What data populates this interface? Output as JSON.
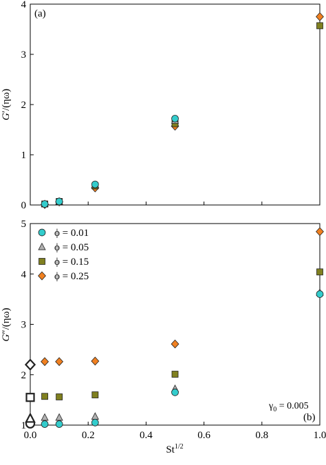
{
  "chart_data": [
    {
      "type": "scatter",
      "panel_label": "(a)",
      "ylabel": "G′/(ηω)",
      "ylabel_parts": {
        "main": "G",
        "prime": "′",
        "rest": "/(ηω)"
      },
      "xlim": [
        0,
        1
      ],
      "ylim": [
        0,
        4
      ],
      "xticks": [
        0,
        0.2,
        0.4,
        0.6,
        0.8,
        1
      ],
      "yticks": [
        "0",
        "1",
        "2",
        "3",
        "4"
      ],
      "series": [
        {
          "name": "ϕ = 0.01",
          "marker": "circle",
          "color": "#33cccc",
          "x": [
            0.05,
            0.1,
            0.224,
            0.5
          ],
          "y": [
            0.02,
            0.07,
            0.41,
            1.72
          ]
        },
        {
          "name": "ϕ = 0.05",
          "marker": "triangle",
          "color": "#b0b0b0",
          "x": [
            0.05,
            0.1,
            0.224,
            0.5
          ],
          "y": [
            0.02,
            0.07,
            0.4,
            1.68
          ]
        },
        {
          "name": "ϕ = 0.15",
          "marker": "square",
          "color": "#808020",
          "x": [
            0.05,
            0.1,
            0.224,
            0.5,
            1.0
          ],
          "y": [
            0.02,
            0.07,
            0.38,
            1.62,
            3.57
          ]
        },
        {
          "name": "ϕ = 0.25",
          "marker": "diamond",
          "color": "#f08020",
          "x": [
            0.05,
            0.1,
            0.224,
            0.5,
            1.0
          ],
          "y": [
            0.01,
            0.06,
            0.34,
            1.57,
            3.75
          ]
        }
      ]
    },
    {
      "type": "scatter",
      "panel_label": "(b)",
      "ylabel": "G″/(ηω)",
      "ylabel_parts": {
        "main": "G",
        "prime": "″",
        "rest": "/(ηω)"
      },
      "xlabel": "St1/2",
      "xlabel_parts": {
        "main": "St",
        "sup": "1/2"
      },
      "annotation": "γ0 = 0.005",
      "annotation_parts": {
        "main": "γ",
        "sub": "0",
        "rest": " = 0.005"
      },
      "xlim": [
        0,
        1
      ],
      "ylim": [
        1,
        5
      ],
      "xticks": [
        "0.0",
        "0.2",
        "0.4",
        "0.6",
        "0.8",
        "1.0"
      ],
      "yticks": [
        "1",
        "2",
        "3",
        "4",
        "5"
      ],
      "legend_position": "top-left",
      "series": [
        {
          "name": "ϕ = 0.01",
          "marker": "circle",
          "color": "#33cccc",
          "x": [
            0.05,
            0.1,
            0.224,
            0.5,
            1.0
          ],
          "y": [
            1.02,
            1.02,
            1.05,
            1.65,
            3.6
          ]
        },
        {
          "name": "ϕ = 0.05",
          "marker": "triangle",
          "color": "#b0b0b0",
          "x": [
            0.05,
            0.1,
            0.224,
            0.5,
            1.0
          ],
          "y": [
            1.15,
            1.15,
            1.17,
            1.72,
            3.63
          ]
        },
        {
          "name": "ϕ = 0.15",
          "marker": "square",
          "color": "#808020",
          "x": [
            0.05,
            0.1,
            0.224,
            0.5,
            1.0
          ],
          "y": [
            1.57,
            1.56,
            1.6,
            2.01,
            4.04
          ]
        },
        {
          "name": "ϕ = 0.25",
          "marker": "diamond",
          "color": "#f08020",
          "x": [
            0.05,
            0.1,
            0.224,
            0.5,
            1.0
          ],
          "y": [
            2.26,
            2.26,
            2.27,
            2.61,
            4.84
          ]
        }
      ],
      "zero_st_markers": [
        {
          "marker": "circle",
          "y": 1.03
        },
        {
          "marker": "triangle",
          "y": 1.13
        },
        {
          "marker": "square",
          "y": 1.55
        },
        {
          "marker": "diamond",
          "y": 2.2
        }
      ]
    }
  ]
}
